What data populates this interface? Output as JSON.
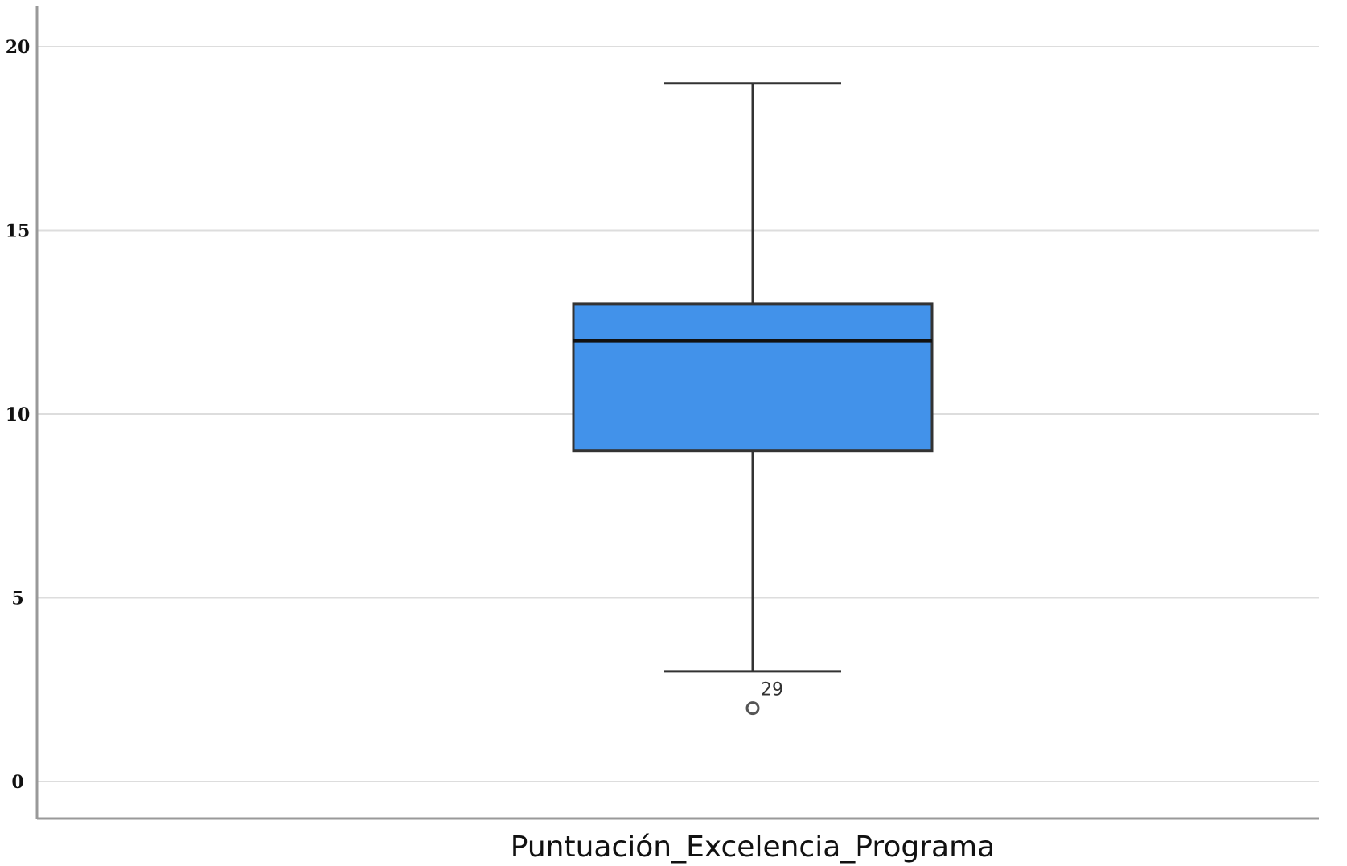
{
  "colors": {
    "box_fill": "#4292ea",
    "box_stroke": "#333333",
    "whisker": "#333333",
    "median": "#111111",
    "grid": "#dddddd",
    "axis": "#999999",
    "outlier": "#555555"
  },
  "chart_data": {
    "type": "boxplot",
    "title": "",
    "xlabel": "",
    "ylabel": "",
    "ylim": [
      -1,
      21
    ],
    "grid": true,
    "yticks": [
      0,
      5,
      10,
      15,
      20
    ],
    "categories": [
      "Puntuación_Excelencia_Programa"
    ],
    "series": [
      {
        "whisker_low": 3,
        "q1": 9,
        "median": 12,
        "q3": 13,
        "whisker_high": 19,
        "outliers": [
          {
            "value": 2,
            "label": "29"
          }
        ]
      }
    ]
  }
}
